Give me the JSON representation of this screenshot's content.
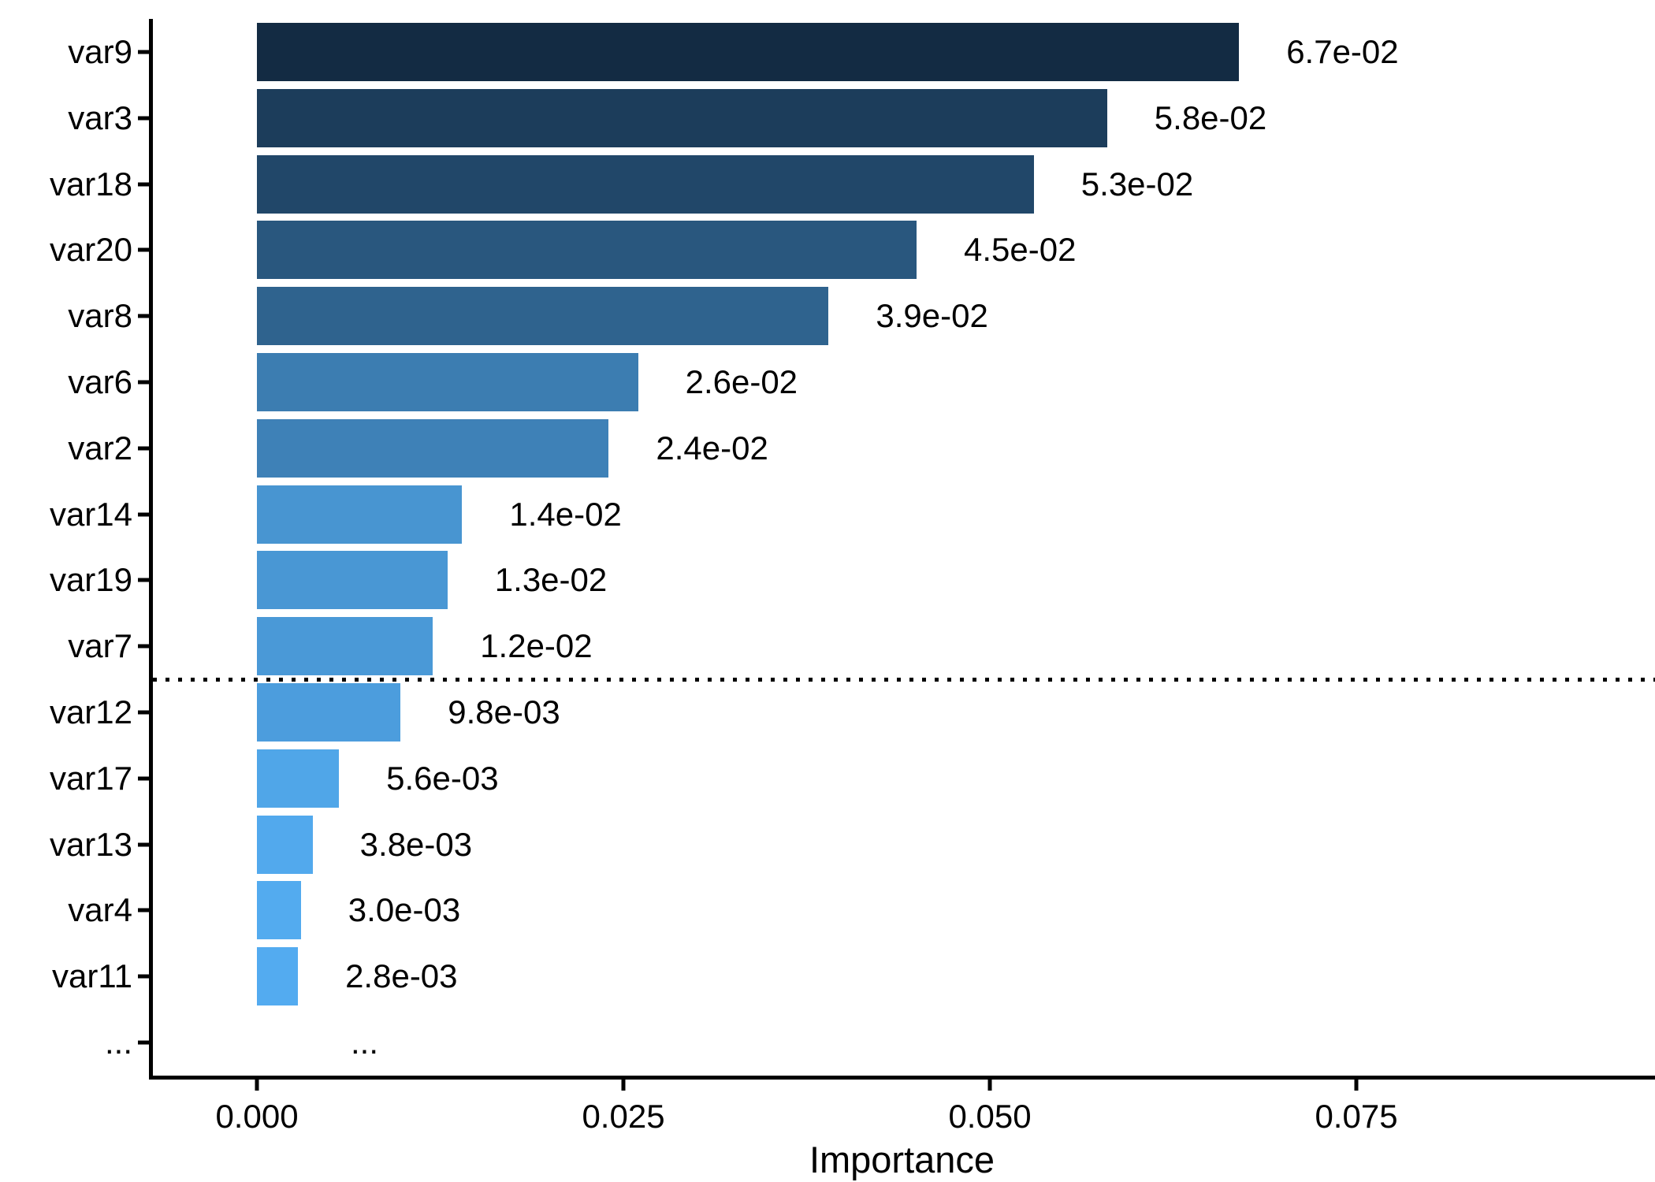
{
  "chart_data": {
    "type": "bar",
    "orientation": "horizontal",
    "title": "",
    "xlabel": "Importance",
    "ylabel": "",
    "xlim": [
      0,
      0.095
    ],
    "grid": false,
    "legend_position": "none",
    "x_ticks": [
      {
        "value": 0.0,
        "label": "0.000"
      },
      {
        "value": 0.025,
        "label": "0.025"
      },
      {
        "value": 0.05,
        "label": "0.050"
      },
      {
        "value": 0.075,
        "label": "0.075"
      }
    ],
    "bars": [
      {
        "category": "var9",
        "value": 0.067,
        "label": "6.7e-02",
        "color": "#132B43"
      },
      {
        "category": "var3",
        "value": 0.058,
        "label": "5.8e-02",
        "color": "#1C3D5B"
      },
      {
        "category": "var18",
        "value": 0.053,
        "label": "5.3e-02",
        "color": "#214769"
      },
      {
        "category": "var20",
        "value": 0.045,
        "label": "4.5e-02",
        "color": "#29577E"
      },
      {
        "category": "var8",
        "value": 0.039,
        "label": "3.9e-02",
        "color": "#2F638E"
      },
      {
        "category": "var6",
        "value": 0.026,
        "label": "2.6e-02",
        "color": "#3C7DB1"
      },
      {
        "category": "var2",
        "value": 0.024,
        "label": "2.4e-02",
        "color": "#3E81B7"
      },
      {
        "category": "var14",
        "value": 0.014,
        "label": "1.4e-02",
        "color": "#4895D1"
      },
      {
        "category": "var19",
        "value": 0.013,
        "label": "1.3e-02",
        "color": "#4997D4"
      },
      {
        "category": "var7",
        "value": 0.012,
        "label": "1.2e-02",
        "color": "#4A99D7"
      },
      {
        "category": "var12",
        "value": 0.0098,
        "label": "9.8e-03",
        "color": "#4C9DDD"
      },
      {
        "category": "var17",
        "value": 0.0056,
        "label": "5.6e-03",
        "color": "#50A6E8"
      },
      {
        "category": "var13",
        "value": 0.0038,
        "label": "3.8e-03",
        "color": "#52A9ED"
      },
      {
        "category": "var4",
        "value": 0.003,
        "label": "3.0e-03",
        "color": "#53ABEF"
      },
      {
        "category": "var11",
        "value": 0.0028,
        "label": "2.8e-03",
        "color": "#53ABF0"
      },
      {
        "category": "...",
        "value": null,
        "label": "...",
        "color": null
      }
    ],
    "threshold_line": {
      "type": "dotted-horizontal",
      "between": [
        "var7",
        "var12"
      ],
      "color": "#000000"
    },
    "color_scale": {
      "low": "#56B1F7",
      "high": "#132B43",
      "domain": [
        0,
        0.067
      ]
    }
  }
}
